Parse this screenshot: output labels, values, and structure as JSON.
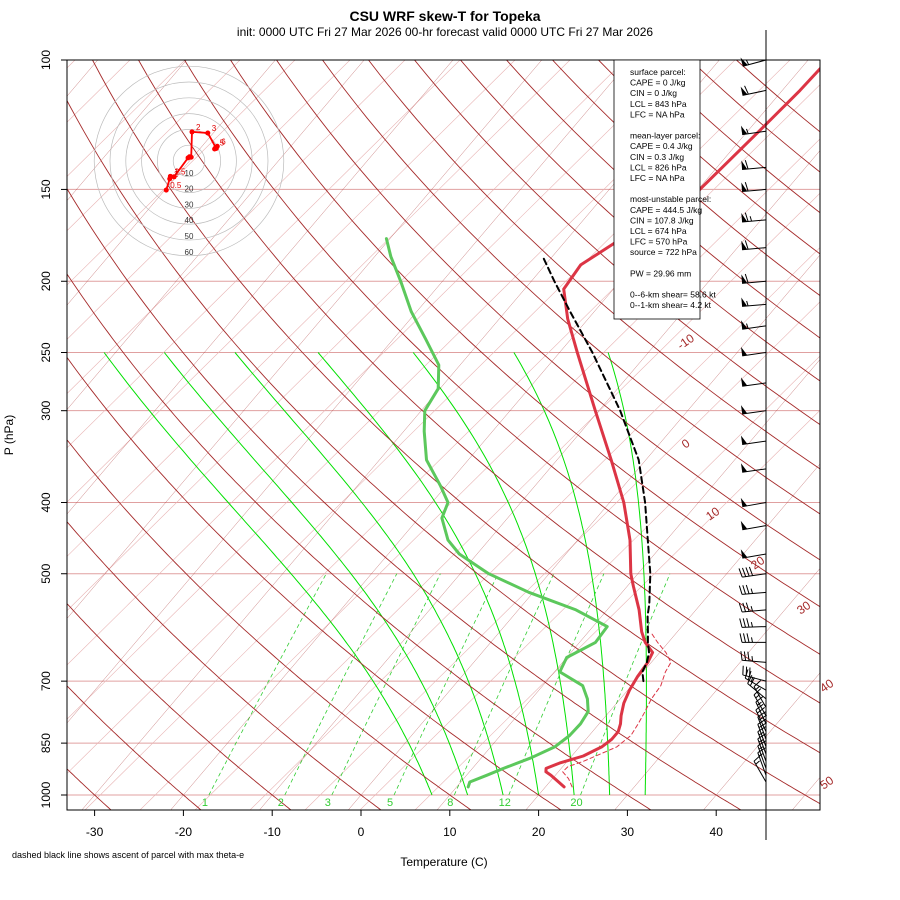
{
  "header": {
    "title": "CSU WRF skew-T for Topeka",
    "subtitle": "init: 0000 UTC Fri 27 Mar 2026     00-hr forecast valid 0000 UTC Fri 27 Mar 2026"
  },
  "footnote": "dashed black line shows ascent of parcel with max theta-e",
  "info_box": {
    "lines": [
      "surface parcel:",
      "CAPE = 0 J/kg",
      "CIN = 0 J/kg",
      "LCL = 843 hPa",
      "LFC = NA hPa",
      "",
      "mean-layer parcel:",
      "CAPE = 0.4 J/kg",
      "CIN = 0.3 J/kg",
      "LCL = 826 hPa",
      "LFC = NA hPa",
      "",
      "most-unstable parcel:",
      "CAPE = 444.5 J/kg",
      "CIN = 107.8 J/kg",
      "LCL = 674 hPa",
      "LFC = 570 hPa",
      "source = 722 hPa",
      "",
      "PW =  29.96 mm",
      "",
      "0--6-km shear= 58.6 kt",
      "0--1-km shear= 4.2 kt"
    ]
  },
  "colors": {
    "isotherm": "#a52a2a",
    "dry_adiabat_grid": "#e8b4b4",
    "isobar": "#e0a0a0",
    "moist_adiabat": "#00e000",
    "mixing_ratio": "#32cd32",
    "temperature": "#dc3545",
    "dewpoint": "#5cc85c",
    "parcel": "#000000",
    "virtual_temp": "#dc3545",
    "hodograph": "#ff0000",
    "barb": "#000000"
  },
  "chart_data": {
    "type": "skew-t",
    "xlabel": "Temperature (C)",
    "ylabel": "P (hPa)",
    "x_ticks": [
      "-30",
      "-20",
      "-10",
      "0",
      "10",
      "20",
      "30",
      "40"
    ],
    "x_tick_values": [
      -30,
      -20,
      -10,
      0,
      10,
      20,
      30,
      40
    ],
    "p_ticks": [
      "100",
      "150",
      "200",
      "250",
      "300",
      "400",
      "500",
      "700",
      "850",
      "1000"
    ],
    "p_tick_values": [
      100,
      150,
      200,
      250,
      300,
      400,
      500,
      700,
      850,
      1000
    ],
    "isotherm_labels": [
      {
        "t": -10,
        "text": "-10"
      },
      {
        "t": 0,
        "text": "0"
      },
      {
        "t": 10,
        "text": "10"
      },
      {
        "t": 20,
        "text": "20"
      },
      {
        "t": 30,
        "text": "30"
      },
      {
        "t": 40,
        "text": "40"
      },
      {
        "t": 50,
        "text": "50"
      }
    ],
    "mixing_ratio_labels": [
      {
        "w": 1,
        "text": "1"
      },
      {
        "w": 2,
        "text": "2"
      },
      {
        "w": 3,
        "text": "3"
      },
      {
        "w": 5,
        "text": "5"
      },
      {
        "w": 8,
        "text": "8"
      },
      {
        "w": 12,
        "text": "12"
      },
      {
        "w": 20,
        "text": "20"
      }
    ],
    "temperature": [
      [
        975,
        22.1
      ],
      [
        960,
        21.0
      ],
      [
        940,
        19.5
      ],
      [
        930,
        18.6
      ],
      [
        920,
        18.3
      ],
      [
        905,
        19.3
      ],
      [
        885,
        21.3
      ],
      [
        860,
        22.5
      ],
      [
        840,
        22.9
      ],
      [
        820,
        22.9
      ],
      [
        800,
        22.4
      ],
      [
        780,
        21.7
      ],
      [
        750,
        20.8
      ],
      [
        720,
        20.2
      ],
      [
        690,
        19.8
      ],
      [
        660,
        19.6
      ],
      [
        640,
        19.2
      ],
      [
        620,
        17.4
      ],
      [
        600,
        16.0
      ],
      [
        560,
        13.6
      ],
      [
        520,
        10.7
      ],
      [
        500,
        9.2
      ],
      [
        450,
        5.9
      ],
      [
        400,
        1.6
      ],
      [
        350,
        -3.9
      ],
      [
        300,
        -10.4
      ],
      [
        250,
        -18.0
      ],
      [
        225,
        -22.3
      ],
      [
        205,
        -25.6
      ],
      [
        190,
        -26.0
      ],
      [
        170,
        -23.2
      ],
      [
        155,
        -20.0
      ],
      [
        140,
        -19.4
      ],
      [
        125,
        -18.7
      ],
      [
        110,
        -18.0
      ],
      [
        102,
        -17.8
      ]
    ],
    "dewpoint": [
      [
        975,
        11.3
      ],
      [
        960,
        11.0
      ],
      [
        940,
        12.3
      ],
      [
        920,
        13.5
      ],
      [
        890,
        15.6
      ],
      [
        860,
        17.2
      ],
      [
        830,
        17.8
      ],
      [
        800,
        17.9
      ],
      [
        770,
        17.6
      ],
      [
        740,
        16.3
      ],
      [
        710,
        14.5
      ],
      [
        680,
        10.6
      ],
      [
        650,
        10.0
      ],
      [
        620,
        11.8
      ],
      [
        590,
        11.6
      ],
      [
        560,
        6.5
      ],
      [
        530,
        -0.5
      ],
      [
        500,
        -6.8
      ],
      [
        470,
        -12.0
      ],
      [
        450,
        -14.6
      ],
      [
        420,
        -17.4
      ],
      [
        400,
        -18.2
      ],
      [
        380,
        -20.6
      ],
      [
        350,
        -24.7
      ],
      [
        320,
        -27.7
      ],
      [
        300,
        -29.6
      ],
      [
        280,
        -30.2
      ],
      [
        260,
        -32.4
      ],
      [
        240,
        -36.3
      ],
      [
        220,
        -40.6
      ],
      [
        200,
        -44.7
      ],
      [
        185,
        -48.2
      ],
      [
        175,
        -50.4
      ]
    ],
    "virtual_temperature": [
      [
        975,
        23.0
      ],
      [
        950,
        21.8
      ],
      [
        930,
        20.5
      ],
      [
        915,
        20.6
      ],
      [
        900,
        21.8
      ],
      [
        880,
        23.0
      ],
      [
        860,
        24.2
      ],
      [
        830,
        24.7
      ],
      [
        800,
        24.4
      ],
      [
        770,
        24.0
      ],
      [
        740,
        23.5
      ],
      [
        710,
        23.3
      ],
      [
        680,
        22.5
      ],
      [
        660,
        22.2
      ],
      [
        640,
        20.7
      ],
      [
        620,
        18.8
      ],
      [
        600,
        17.0
      ]
    ],
    "parcel": [
      [
        700,
        20.9
      ],
      [
        680,
        19.9
      ],
      [
        660,
        19.5
      ],
      [
        640,
        18.8
      ],
      [
        620,
        17.7
      ],
      [
        600,
        16.7
      ],
      [
        570,
        15.1
      ],
      [
        550,
        14.2
      ],
      [
        500,
        11.4
      ],
      [
        450,
        7.9
      ],
      [
        400,
        4.0
      ],
      [
        350,
        -0.8
      ],
      [
        300,
        -7.6
      ],
      [
        250,
        -16.3
      ],
      [
        220,
        -22.7
      ],
      [
        200,
        -27.4
      ],
      [
        185,
        -31.1
      ]
    ],
    "wind_barbs": [
      {
        "p": 100,
        "dir": 255,
        "spd": 55
      },
      {
        "p": 110,
        "dir": 258,
        "spd": 60
      },
      {
        "p": 125,
        "dir": 262,
        "spd": 55
      },
      {
        "p": 140,
        "dir": 265,
        "spd": 60
      },
      {
        "p": 150,
        "dir": 265,
        "spd": 60
      },
      {
        "p": 165,
        "dir": 265,
        "spd": 65
      },
      {
        "p": 180,
        "dir": 265,
        "spd": 60
      },
      {
        "p": 200,
        "dir": 265,
        "spd": 60
      },
      {
        "p": 215,
        "dir": 265,
        "spd": 55
      },
      {
        "p": 230,
        "dir": 262,
        "spd": 55
      },
      {
        "p": 250,
        "dir": 262,
        "spd": 50
      },
      {
        "p": 275,
        "dir": 262,
        "spd": 50
      },
      {
        "p": 300,
        "dir": 262,
        "spd": 50
      },
      {
        "p": 330,
        "dir": 262,
        "spd": 50
      },
      {
        "p": 360,
        "dir": 262,
        "spd": 50
      },
      {
        "p": 400,
        "dir": 260,
        "spd": 50
      },
      {
        "p": 430,
        "dir": 260,
        "spd": 50
      },
      {
        "p": 470,
        "dir": 260,
        "spd": 50
      },
      {
        "p": 500,
        "dir": 262,
        "spd": 40
      },
      {
        "p": 530,
        "dir": 265,
        "spd": 35
      },
      {
        "p": 560,
        "dir": 265,
        "spd": 35
      },
      {
        "p": 590,
        "dir": 268,
        "spd": 35
      },
      {
        "p": 620,
        "dir": 270,
        "spd": 35
      },
      {
        "p": 660,
        "dir": 275,
        "spd": 35
      },
      {
        "p": 700,
        "dir": 285,
        "spd": 30
      },
      {
        "p": 720,
        "dir": 300,
        "spd": 25
      },
      {
        "p": 740,
        "dir": 310,
        "spd": 20
      },
      {
        "p": 760,
        "dir": 330,
        "spd": 15
      },
      {
        "p": 780,
        "dir": 330,
        "spd": 15
      },
      {
        "p": 800,
        "dir": 335,
        "spd": 15
      },
      {
        "p": 820,
        "dir": 335,
        "spd": 20
      },
      {
        "p": 840,
        "dir": 340,
        "spd": 20
      },
      {
        "p": 860,
        "dir": 340,
        "spd": 20
      },
      {
        "p": 880,
        "dir": 340,
        "spd": 15
      },
      {
        "p": 900,
        "dir": 340,
        "spd": 15
      },
      {
        "p": 920,
        "dir": 340,
        "spd": 15
      },
      {
        "p": 940,
        "dir": 340,
        "spd": 15
      },
      {
        "p": 960,
        "dir": 330,
        "spd": 15
      }
    ],
    "hodograph": {
      "ring_labels": [
        "10",
        "20",
        "30",
        "40",
        "50",
        "60"
      ],
      "ring_values": [
        10,
        20,
        30,
        40,
        50,
        60
      ],
      "points": [
        {
          "label": "0.5",
          "u": -14.4,
          "v": -18.4
        },
        {
          "label": "1",
          "u": -12.2,
          "v": -11.3
        },
        {
          "label": "1.5",
          "u": -11.8,
          "v": -9.7
        },
        {
          "label": "2",
          "u": -11.6,
          "v": -9.9
        },
        {
          "label": "",
          "u": -9.4,
          "v": -10.0
        },
        {
          "label": "",
          "u": -0.6,
          "v": 2.0
        },
        {
          "label": "",
          "u": 0.3,
          "v": 2.7
        },
        {
          "label": "",
          "u": 1.4,
          "v": 2.4
        },
        {
          "label": "2",
          "u": 1.9,
          "v": 18.4
        },
        {
          "label": "3",
          "u": 11.9,
          "v": 17.7
        },
        {
          "label": "5",
          "u": 16.9,
          "v": 8.6
        },
        {
          "label": "6",
          "u": 17.9,
          "v": 9.3
        },
        {
          "label": "",
          "u": 17.2,
          "v": 7.9
        },
        {
          "label": "",
          "u": 16.2,
          "v": 7.6
        }
      ]
    }
  }
}
